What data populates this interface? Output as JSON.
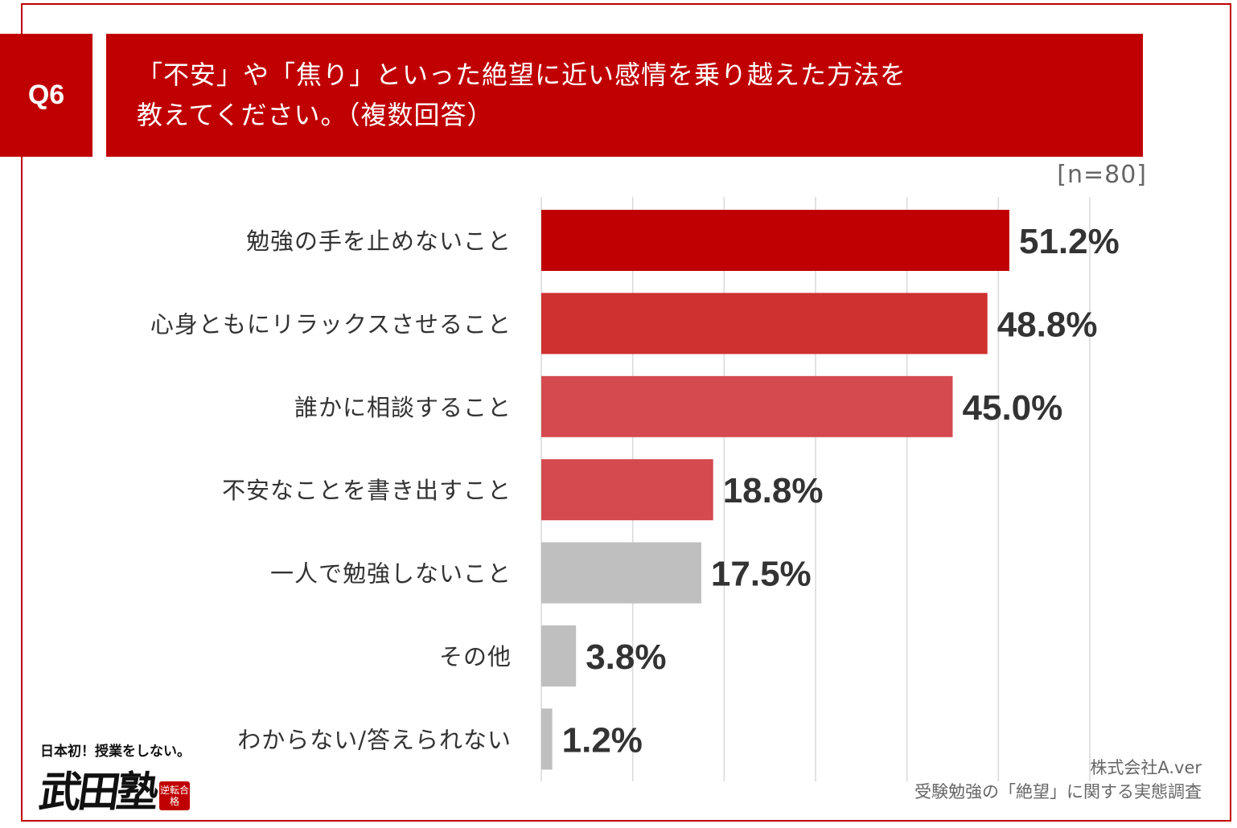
{
  "question_tag": "Q6",
  "title_lines": [
    "「不安」や「焦り」といった絶望に近い感情を乗り越えた方法を",
    "教えてください。（複数回答）"
  ],
  "sample_size": "[n=80]",
  "footer": {
    "company": "株式会社A.ver",
    "survey": "受験勉強の「絶望」に関する実態調査"
  },
  "logo": {
    "tagline": "日本初！授業をしない。",
    "name": "武田塾",
    "stamp": "逆転合格"
  },
  "colors": {
    "accent": "#c00000",
    "bar_1": "#c00000",
    "bar_2": "#cf3030",
    "bar_3_4": "#d44a4e",
    "bar_gray": "#bfbfbf",
    "gridline": "#d9d9d9"
  },
  "chart_data": {
    "type": "bar",
    "orientation": "horizontal",
    "categories": [
      "勉強の手を止めないこと",
      "心身ともにリラックスさせること",
      "誰かに相談すること",
      "不安なことを書き出すこと",
      "一人で勉強しないこと",
      "その他",
      "わからない/答えられない"
    ],
    "values": [
      51.2,
      48.8,
      45.0,
      18.8,
      17.5,
      3.8,
      1.2
    ],
    "value_labels": [
      "51.2%",
      "48.8%",
      "45.0%",
      "18.8%",
      "17.5%",
      "3.8%",
      "1.2%"
    ],
    "bar_colors": [
      "#c00000",
      "#cf3030",
      "#d44a4e",
      "#d44a4e",
      "#bfbfbf",
      "#bfbfbf",
      "#bfbfbf"
    ],
    "xlim": [
      0,
      60
    ],
    "grid": true,
    "unit": "%"
  }
}
